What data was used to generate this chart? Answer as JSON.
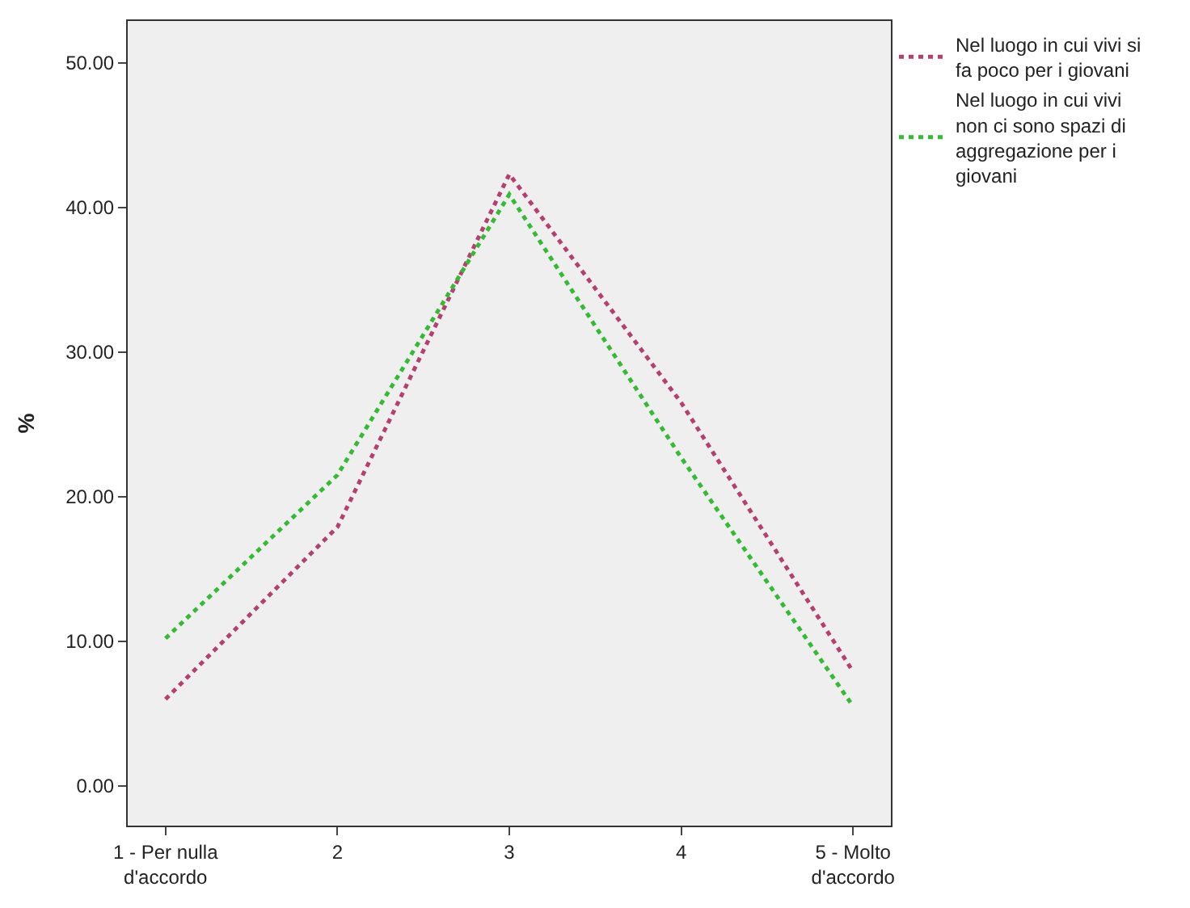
{
  "chart_data": {
    "type": "line",
    "ylabel": "%",
    "categories": [
      "1 - Per nulla d'accordo",
      "2",
      "3",
      "4",
      "5 - Molto d'accordo"
    ],
    "series": [
      {
        "name": "Nel luogo in cui vivi si fa poco per i giovani",
        "color": "#b5406f",
        "values": [
          6.0,
          17.9,
          42.3,
          26.5,
          7.9
        ]
      },
      {
        "name": "Nel luogo in cui vivi non ci sono spazi di aggregazione per i giovani",
        "color": "#33bb33",
        "values": [
          10.2,
          21.5,
          40.9,
          22.7,
          5.5
        ]
      }
    ],
    "ylim": [
      -2.75,
      52.9
    ],
    "yticks": [
      {
        "value": 0,
        "label": "0.00"
      },
      {
        "value": 10,
        "label": "10.00"
      },
      {
        "value": 20,
        "label": "20.00"
      },
      {
        "value": 30,
        "label": "30.00"
      },
      {
        "value": 40,
        "label": "40.00"
      },
      {
        "value": 50,
        "label": "50.00"
      }
    ],
    "grid": false,
    "legend": "top right",
    "marker": "none",
    "line_style": "dotted"
  }
}
